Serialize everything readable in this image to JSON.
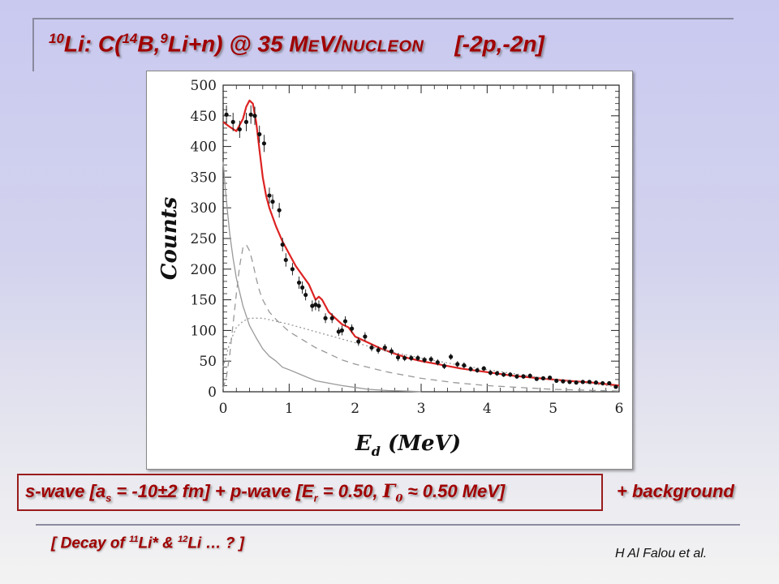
{
  "title": {
    "sup1": "10",
    "t1": "Li: C(",
    "sup2": "14",
    "t2": "B,",
    "sup3": "9",
    "t3": "Li+n) @ 35 ",
    "t4": "M",
    "t5": "E",
    "t6": "V/",
    "t7": "NUCLEON",
    "t8": "[-2p,-2n]"
  },
  "caption": {
    "p1": "s-wave [a",
    "p1_sub": "s",
    "p2": " = -10±2 fm] +  p-wave [E",
    "p2_sub": "r",
    "p3": " = 0.50, ",
    "gamma": "Γ",
    "gamma_sub": "0",
    "approx": " ≈ ",
    "p4": "0.50 MeV]",
    "background": "+  background"
  },
  "decay": {
    "p1": "[  Decay of ",
    "s1": "11",
    "p2": "Li* & ",
    "s2": "12",
    "p3": "Li … ?  ]"
  },
  "author": "H Al Falou et al.",
  "colors": {
    "title": "#a00000",
    "fit": "#dd2222",
    "components": "#999999",
    "points": "#111111",
    "caption_border": "#9a1c1c"
  },
  "chart_data": {
    "type": "scatter",
    "xlabel_main": "E",
    "xlabel_sub": "d",
    "xlabel_unit": " (MeV)",
    "ylabel": "Counts",
    "xlim": [
      0,
      6
    ],
    "ylim": [
      0,
      500
    ],
    "x_ticks": [
      0,
      1,
      2,
      3,
      4,
      5,
      6
    ],
    "y_ticks": [
      0,
      50,
      100,
      150,
      200,
      250,
      300,
      350,
      400,
      450,
      500
    ],
    "points": {
      "x": [
        0.05,
        0.15,
        0.25,
        0.35,
        0.42,
        0.48,
        0.55,
        0.62,
        0.7,
        0.75,
        0.85,
        0.9,
        0.95,
        1.05,
        1.15,
        1.2,
        1.25,
        1.35,
        1.4,
        1.45,
        1.55,
        1.65,
        1.75,
        1.8,
        1.85,
        1.95,
        2.05,
        2.15,
        2.25,
        2.35,
        2.45,
        2.55,
        2.65,
        2.75,
        2.85,
        2.95,
        3.05,
        3.15,
        3.25,
        3.35,
        3.45,
        3.55,
        3.65,
        3.75,
        3.85,
        3.95,
        4.05,
        4.15,
        4.25,
        4.35,
        4.45,
        4.55,
        4.65,
        4.75,
        4.85,
        4.95,
        5.05,
        5.15,
        5.25,
        5.35,
        5.45,
        5.55,
        5.65,
        5.75,
        5.85,
        5.95
      ],
      "y": [
        452,
        440,
        428,
        440,
        452,
        450,
        420,
        405,
        320,
        310,
        296,
        240,
        215,
        200,
        178,
        170,
        158,
        140,
        142,
        140,
        120,
        120,
        98,
        100,
        115,
        103,
        82,
        90,
        72,
        68,
        72,
        66,
        56,
        55,
        55,
        55,
        52,
        53,
        48,
        42,
        57,
        45,
        43,
        37,
        35,
        38,
        31,
        30,
        28,
        28,
        25,
        25,
        26,
        21,
        22,
        23,
        18,
        17,
        16,
        15,
        16,
        16,
        15,
        14,
        14,
        8
      ],
      "err": [
        15,
        15,
        14,
        15,
        15,
        15,
        14,
        14,
        13,
        12,
        12,
        11,
        11,
        10,
        10,
        10,
        9,
        9,
        9,
        9,
        8,
        8,
        7,
        8,
        8,
        7,
        7,
        7,
        6,
        6,
        6,
        6,
        6,
        5,
        5,
        5,
        5,
        5,
        5,
        5,
        5,
        5,
        5,
        4,
        4,
        4,
        4,
        4,
        4,
        4,
        4,
        4,
        4,
        3,
        3,
        3,
        3,
        3,
        3,
        3,
        3,
        3,
        3,
        3,
        3,
        3
      ]
    },
    "series": [
      {
        "style": "fit",
        "x": [
          0.0,
          0.1,
          0.2,
          0.3,
          0.35,
          0.4,
          0.45,
          0.5,
          0.55,
          0.6,
          0.65,
          0.7,
          0.8,
          0.9,
          1.0,
          1.1,
          1.2,
          1.3,
          1.4,
          1.45,
          1.5,
          1.6,
          1.7,
          1.8,
          1.9,
          2.0,
          2.2,
          2.4,
          2.6,
          2.8,
          3.0,
          3.3,
          3.6,
          4.0,
          4.4,
          4.8,
          5.2,
          5.6,
          6.0
        ],
        "y": [
          440,
          432,
          425,
          445,
          465,
          475,
          470,
          440,
          395,
          350,
          320,
          300,
          270,
          245,
          225,
          205,
          190,
          175,
          150,
          155,
          150,
          130,
          120,
          110,
          105,
          90,
          80,
          70,
          62,
          55,
          50,
          44,
          38,
          32,
          26,
          22,
          18,
          15,
          10
        ]
      },
      {
        "style": "s-wave",
        "x": [
          0.0,
          0.03,
          0.06,
          0.1,
          0.15,
          0.2,
          0.3,
          0.4,
          0.5,
          0.6,
          0.7,
          0.8,
          0.9,
          1.0,
          1.2,
          1.4,
          1.6,
          1.8,
          2.0,
          2.2,
          2.5,
          2.8,
          3.0
        ],
        "y": [
          375,
          335,
          300,
          258,
          218,
          185,
          140,
          108,
          88,
          70,
          58,
          50,
          40,
          36,
          27,
          18,
          14,
          10,
          7,
          4,
          2,
          1,
          0
        ]
      },
      {
        "style": "p-wave",
        "x": [
          0.0,
          0.05,
          0.1,
          0.15,
          0.2,
          0.25,
          0.3,
          0.35,
          0.4,
          0.45,
          0.5,
          0.55,
          0.6,
          0.7,
          0.8,
          0.9,
          1.0,
          1.2,
          1.4,
          1.6,
          1.8,
          2.0,
          2.5,
          3.0,
          3.5,
          4.0,
          5.0,
          6.0
        ],
        "y": [
          5,
          25,
          60,
          110,
          160,
          205,
          235,
          240,
          230,
          210,
          185,
          165,
          150,
          130,
          118,
          108,
          98,
          85,
          72,
          62,
          52,
          45,
          32,
          22,
          15,
          10,
          4,
          1
        ]
      },
      {
        "style": "background",
        "x": [
          0.0,
          0.1,
          0.2,
          0.3,
          0.4,
          0.6,
          0.8,
          1.0,
          1.5,
          2.0,
          2.5,
          3.0,
          3.5,
          4.0,
          4.5,
          5.0,
          5.5,
          6.0
        ],
        "y": [
          40,
          80,
          105,
          115,
          120,
          120,
          115,
          110,
          95,
          80,
          66,
          55,
          45,
          36,
          28,
          20,
          14,
          8
        ]
      }
    ]
  }
}
